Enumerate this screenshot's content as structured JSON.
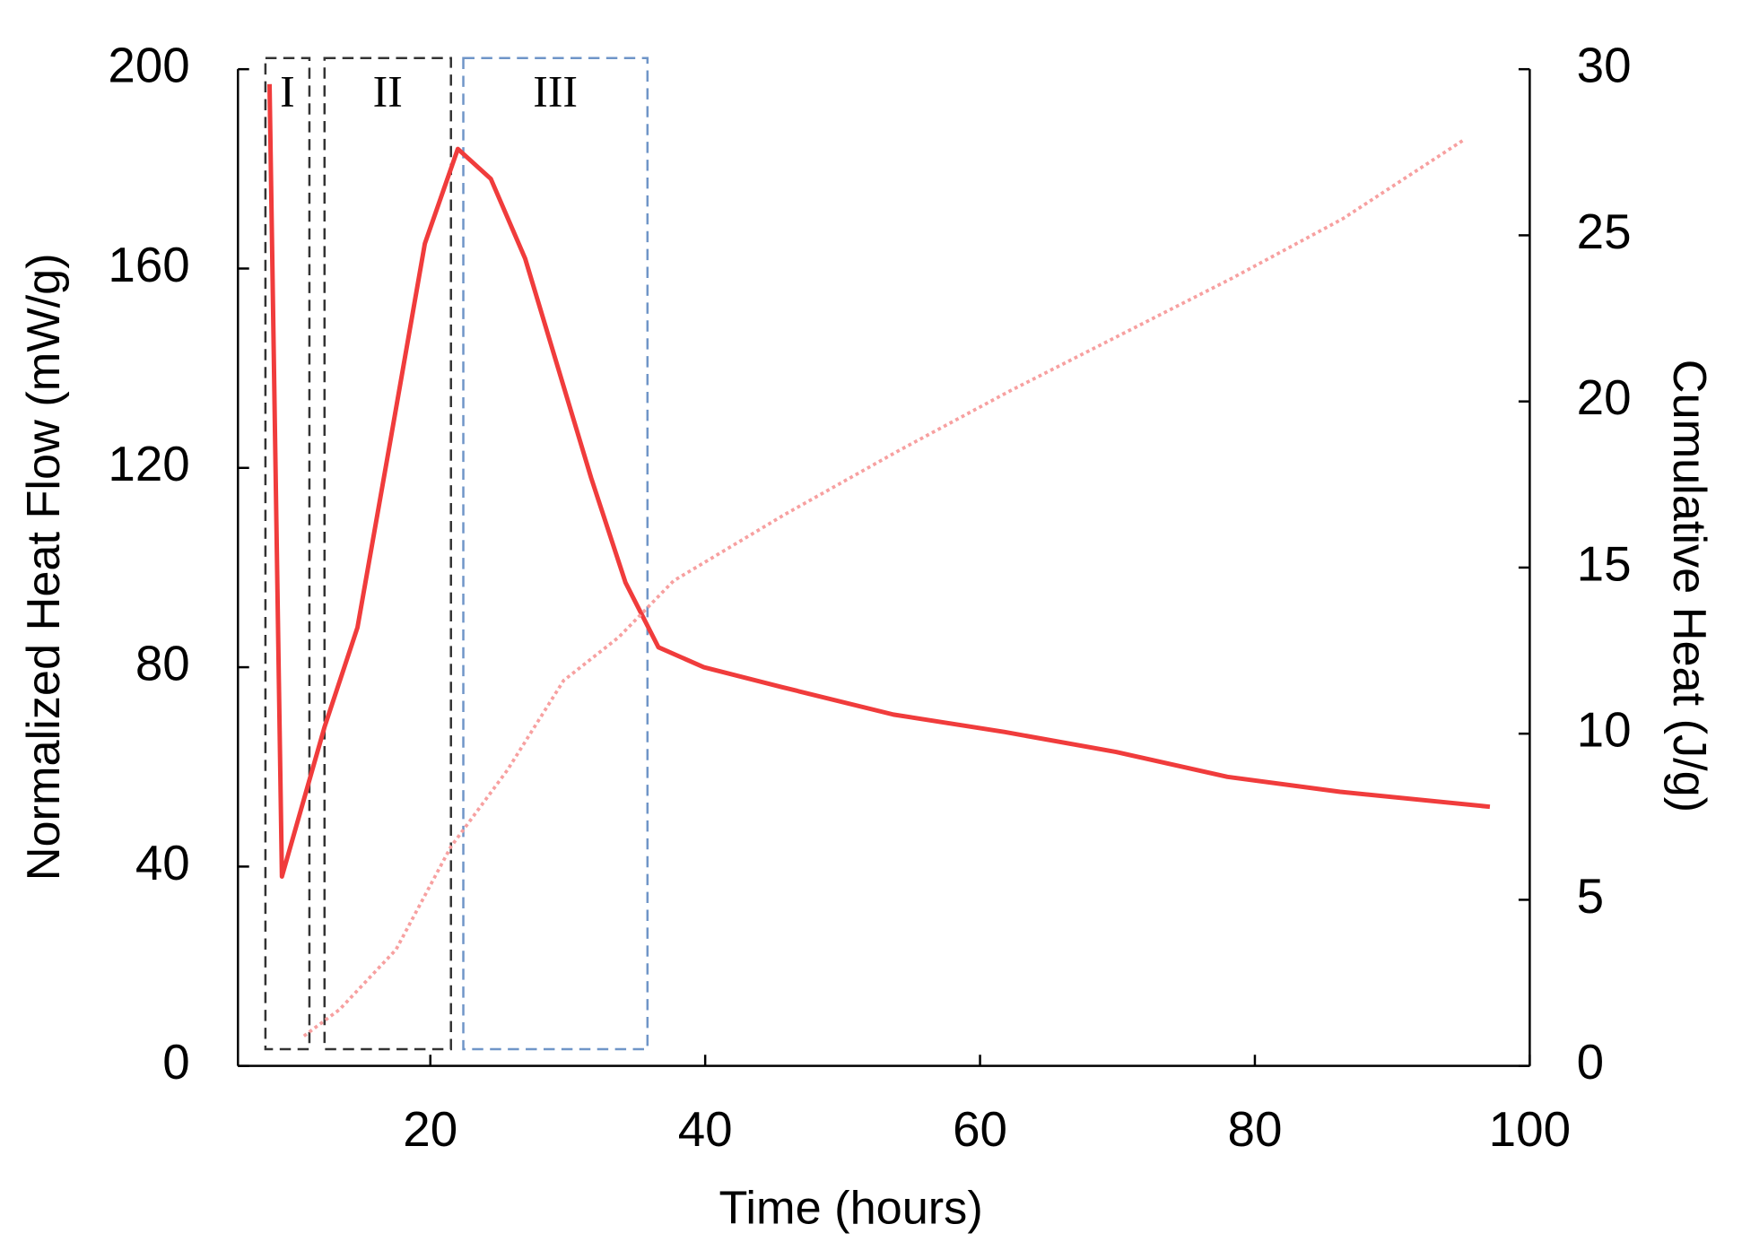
{
  "chart_data": {
    "type": "line",
    "x_label": "Time (hours)",
    "y_label": "Normalized Heat Flow (mW/g)",
    "y2_label": "Cumulative Heat (J/g)",
    "xlim": [
      6,
      100
    ],
    "xticks": [
      20,
      40,
      60,
      80,
      100
    ],
    "ylim": [
      0,
      200
    ],
    "yticks": [
      0,
      40,
      80,
      120,
      160,
      200
    ],
    "y2lim": [
      0,
      30
    ],
    "y2ticks": [
      0,
      5,
      10,
      15,
      20,
      25,
      30
    ],
    "series": [
      {
        "name": "Normalized Heat Flow",
        "color": "#f03c3c",
        "style": "solid",
        "x": [
          8.3,
          9.2,
          12.3,
          14.7,
          17,
          19.6,
          22,
          24.4,
          26.9,
          29.3,
          31.7,
          34.2,
          36.6,
          39.9,
          45.6,
          53.7,
          61.8,
          69.9,
          78,
          86.2,
          97.1
        ],
        "values": [
          197,
          38,
          68,
          88,
          124,
          165,
          184,
          178,
          162,
          140,
          118,
          97,
          84,
          80,
          76,
          70.5,
          67,
          63,
          58,
          55,
          52
        ]
      },
      {
        "name": "Cumulative Heat",
        "color": "#f7a0a0",
        "style": "dotted",
        "axis": "y2",
        "x": [
          10.8,
          13.4,
          17.5,
          21.5,
          25.6,
          29.7,
          33.7,
          37.7,
          45.8,
          54,
          62.1,
          70.2,
          78.3,
          86.4,
          95.3
        ],
        "values": [
          0.9,
          1.7,
          3.5,
          6.6,
          8.9,
          11.6,
          12.9,
          14.6,
          16.6,
          18.5,
          20.3,
          22,
          23.7,
          25.5,
          27.9
        ]
      }
    ],
    "regions": [
      {
        "label": "I",
        "x": [
          8,
          11.2
        ],
        "color": "#333333"
      },
      {
        "label": "II",
        "x": [
          12.3,
          21.5
        ],
        "color": "#333333"
      },
      {
        "label": "III",
        "x": [
          22.4,
          35.8
        ],
        "color": "#6f95c8"
      }
    ]
  }
}
